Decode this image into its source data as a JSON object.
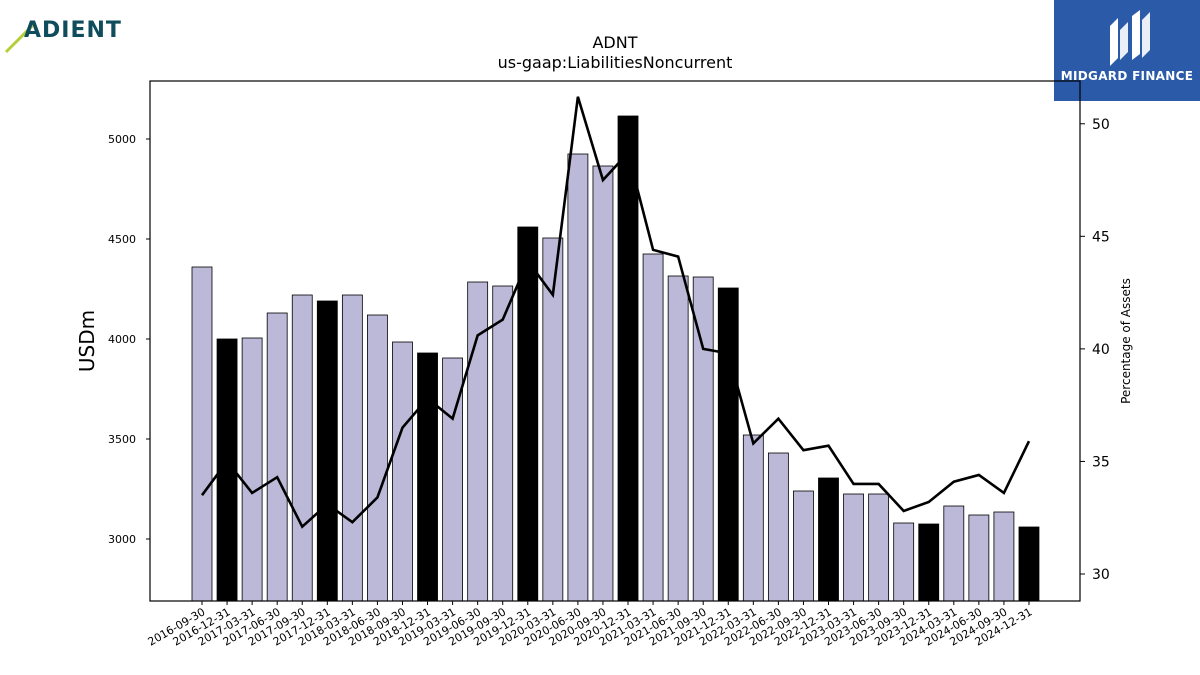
{
  "logos": {
    "left_text": "ADIENT",
    "right_text": "MIDGARD FINANCE"
  },
  "colors": {
    "bar_default": "#bcb8d8",
    "bar_highlight": "#000000",
    "line": "#000000",
    "logo_right_bg": "#2b5aa8",
    "logo_left_text": "#0f4c5c",
    "logo_left_accent": "#b5cf3a"
  },
  "chart_data": {
    "type": "bar",
    "title": "ADNT",
    "subtitle": "us-gaap:LiabilitiesNoncurrent",
    "ylabel": "USDm",
    "y2label": "Percentage of Assets",
    "ylim": [
      2690,
      5290
    ],
    "y2lim": [
      28.8,
      51.9
    ],
    "yticks": [
      3000,
      3500,
      4000,
      4500,
      5000
    ],
    "y2ticks": [
      30,
      35,
      40,
      45,
      50
    ],
    "grid": false,
    "categories": [
      "2016-09-30",
      "2016-12-31",
      "2017-03-31",
      "2017-06-30",
      "2017-09-30",
      "2017-12-31",
      "2018-03-31",
      "2018-06-30",
      "2018-09-30",
      "2018-12-31",
      "2019-03-31",
      "2019-06-30",
      "2019-09-30",
      "2019-12-31",
      "2020-03-31",
      "2020-06-30",
      "2020-09-30",
      "2020-12-31",
      "2021-03-31",
      "2021-06-30",
      "2021-09-30",
      "2021-12-31",
      "2022-03-31",
      "2022-06-30",
      "2022-09-30",
      "2022-12-31",
      "2023-03-31",
      "2023-06-30",
      "2023-09-30",
      "2023-12-31",
      "2024-03-31",
      "2024-06-30",
      "2024-09-30",
      "2024-12-31"
    ],
    "series": [
      {
        "type": "bar",
        "values": [
          4360,
          4000,
          4005,
          4130,
          4220,
          4190,
          4220,
          4120,
          3985,
          3930,
          3905,
          4285,
          4265,
          4560,
          4505,
          4925,
          4865,
          5115,
          4425,
          4315,
          4310,
          4255,
          3520,
          3430,
          3240,
          3305,
          3225,
          3225,
          3080,
          3075,
          3165,
          3120,
          3135,
          3060
        ],
        "highlight": [
          false,
          true,
          false,
          false,
          false,
          true,
          false,
          false,
          false,
          true,
          false,
          false,
          false,
          true,
          false,
          false,
          false,
          true,
          false,
          false,
          false,
          true,
          false,
          false,
          false,
          true,
          false,
          false,
          false,
          true,
          false,
          false,
          false,
          true
        ]
      },
      {
        "type": "line",
        "axis": "right",
        "values": [
          33.5,
          35.0,
          33.6,
          34.3,
          32.1,
          33.1,
          32.3,
          33.4,
          36.5,
          37.8,
          36.9,
          40.6,
          41.3,
          43.9,
          42.4,
          51.2,
          47.5,
          48.7,
          44.4,
          44.1,
          40.0,
          39.8,
          35.8,
          36.9,
          35.5,
          35.7,
          34.0,
          34.0,
          32.8,
          33.2,
          34.1,
          34.4,
          33.6,
          35.9
        ]
      }
    ]
  }
}
